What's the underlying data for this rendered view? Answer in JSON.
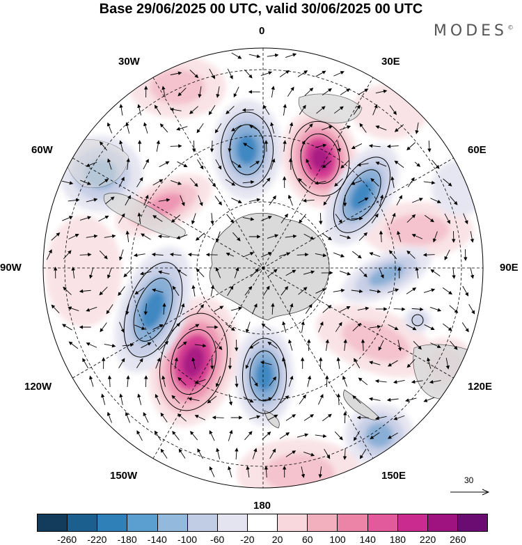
{
  "title": "Base 29/06/2025 00 UTC, valid 30/06/2025 00 UTC",
  "logo": {
    "text": "MODES",
    "mark": "©"
  },
  "longitude_labels": {
    "top": "0",
    "bottom": "180",
    "left": "90W",
    "right": "90E",
    "upper_left": "30W",
    "upper_right": "30E",
    "mid_upper_left": "60W",
    "mid_upper_right": "60E",
    "mid_lower_left": "120W",
    "mid_lower_right": "120E",
    "lower_left": "150W",
    "lower_right": "150E"
  },
  "reference_vector": {
    "label": "30"
  },
  "colorbar": {
    "colors": [
      "#123b5c",
      "#1a5f8e",
      "#2f7fb8",
      "#5a9fcf",
      "#93b9dc",
      "#c1cde5",
      "#e4e4f0",
      "#ffffff",
      "#f8d8dc",
      "#f2b0bf",
      "#ec84a8",
      "#e25a9c",
      "#c92b8f",
      "#9e137f",
      "#6a0c71"
    ],
    "tick_labels": [
      "-260",
      "-220",
      "-180",
      "-140",
      "-100",
      "-60",
      "-20",
      "20",
      "60",
      "100",
      "140",
      "180",
      "220",
      "260"
    ]
  },
  "map_colors": {
    "land": "#dadada",
    "strong_neg": "#3f88c2",
    "mid_neg": "#89afd6",
    "weak_neg": "#c8cfe6",
    "faint_neg": "#e6e6f2",
    "faint_pos": "#f9e3e6",
    "weak_pos": "#f4c3cd",
    "mid_pos": "#ee96b4",
    "strong_pos": "#d63d93",
    "extreme_pos": "#a81e84"
  }
}
